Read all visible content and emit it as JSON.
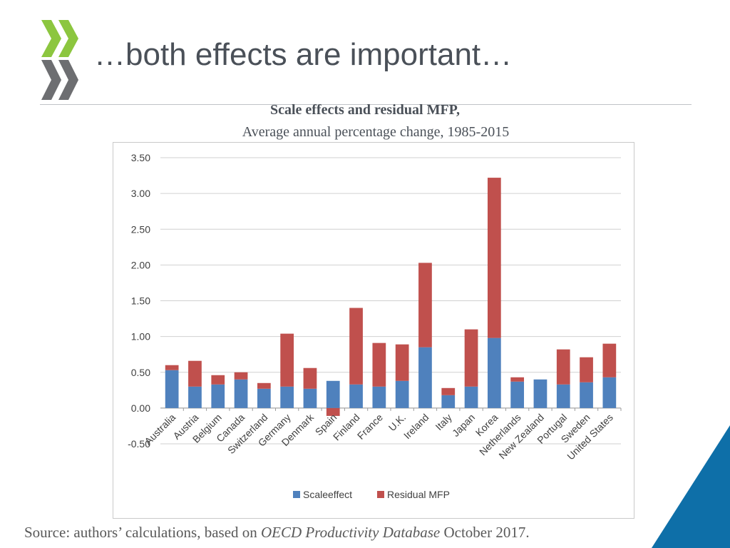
{
  "slide": {
    "title": "…both effects are important…",
    "source_prefix": "Source: authors’ calculations, based on ",
    "source_database": "OECD Productivity Database",
    "source_suffix": " October 2017."
  },
  "colors": {
    "scale_effect": "#4f81bd",
    "residual_mfp": "#c0504d",
    "title_text": "#4a5058",
    "logo_green": "#8cc63f",
    "logo_grey": "#6d6e71",
    "corner_blue": "#0e6fa8"
  },
  "chart_data": {
    "type": "bar",
    "stacked": true,
    "title": "Scale effects and residual MFP,",
    "subtitle": "Average annual percentage change, 1985-2015",
    "categories": [
      "Australia",
      "Austria",
      "Belgium",
      "Canada",
      "Switzerland",
      "Germany",
      "Denmark",
      "Spain",
      "Finland",
      "France",
      "U.K.",
      "Ireland",
      "Italy",
      "Japan",
      "Korea",
      "Netherlands",
      "New Zealand",
      "Portugal",
      "Sweden",
      "United States"
    ],
    "series": [
      {
        "name": "Scaleeffect",
        "values": [
          0.53,
          0.3,
          0.33,
          0.4,
          0.27,
          0.3,
          0.27,
          0.38,
          0.33,
          0.3,
          0.38,
          0.85,
          0.18,
          0.3,
          0.98,
          0.37,
          0.4,
          0.33,
          0.36,
          0.43
        ]
      },
      {
        "name": "Residual MFP",
        "values": [
          0.07,
          0.36,
          0.13,
          0.1,
          0.08,
          0.74,
          0.29,
          -0.11,
          1.07,
          0.61,
          0.51,
          1.18,
          0.1,
          0.8,
          2.24,
          0.06,
          0.0,
          0.49,
          0.35,
          0.47
        ]
      }
    ],
    "ylim": [
      -0.5,
      3.5
    ],
    "yticks": [
      "-0.50",
      "0.00",
      "0.50",
      "1.00",
      "1.50",
      "2.00",
      "2.50",
      "3.00",
      "3.50"
    ],
    "grid": true,
    "legend": "bottom"
  }
}
